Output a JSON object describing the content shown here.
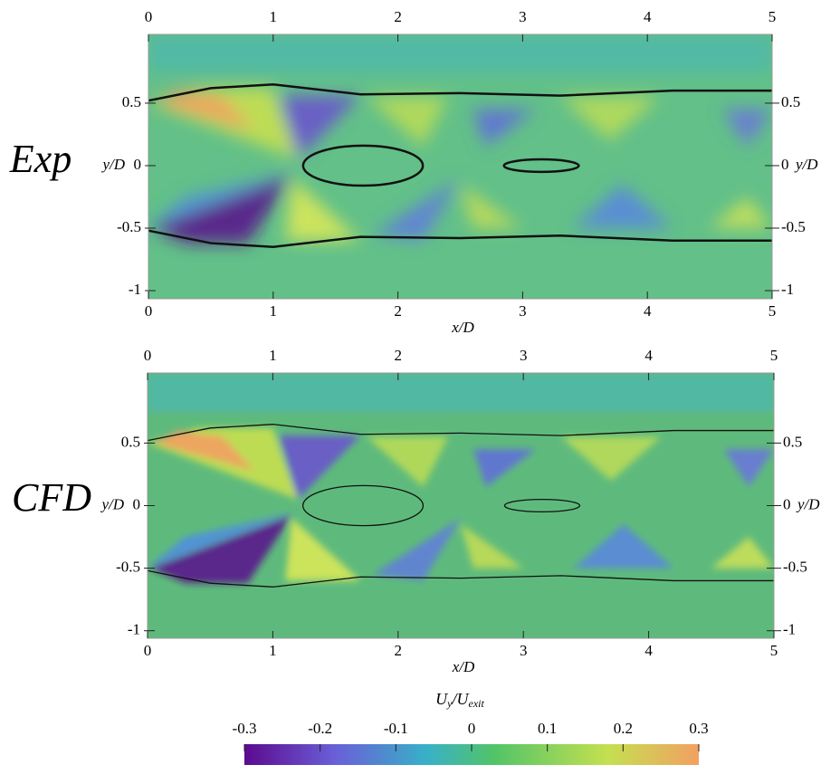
{
  "chart_data": [
    {
      "type": "heatmap",
      "label": "Exp",
      "xlabel": "x/D",
      "ylabel": "y/D",
      "xlim": [
        0,
        5
      ],
      "ylim": [
        -1.065,
        1.05
      ],
      "xticks": [
        0,
        1,
        2,
        3,
        4,
        5
      ],
      "yticks": [
        -1,
        -0.5,
        0,
        0.5
      ]
    },
    {
      "type": "heatmap",
      "label": "CFD",
      "xlabel": "x/D",
      "ylabel": "y/D",
      "xlim": [
        0,
        5
      ],
      "ylim": [
        -1.06,
        1.06
      ],
      "xticks": [
        0,
        1,
        2,
        3,
        4,
        5
      ],
      "yticks": [
        -1,
        -0.5,
        0,
        0.5
      ]
    }
  ],
  "colorbar": {
    "title": [
      "U",
      "y",
      "/U",
      "exit"
    ],
    "lim": [
      -0.3,
      0.3
    ],
    "ticks": [
      -0.3,
      -0.2,
      -0.1,
      0,
      0.1,
      0.2,
      0.3
    ]
  }
}
